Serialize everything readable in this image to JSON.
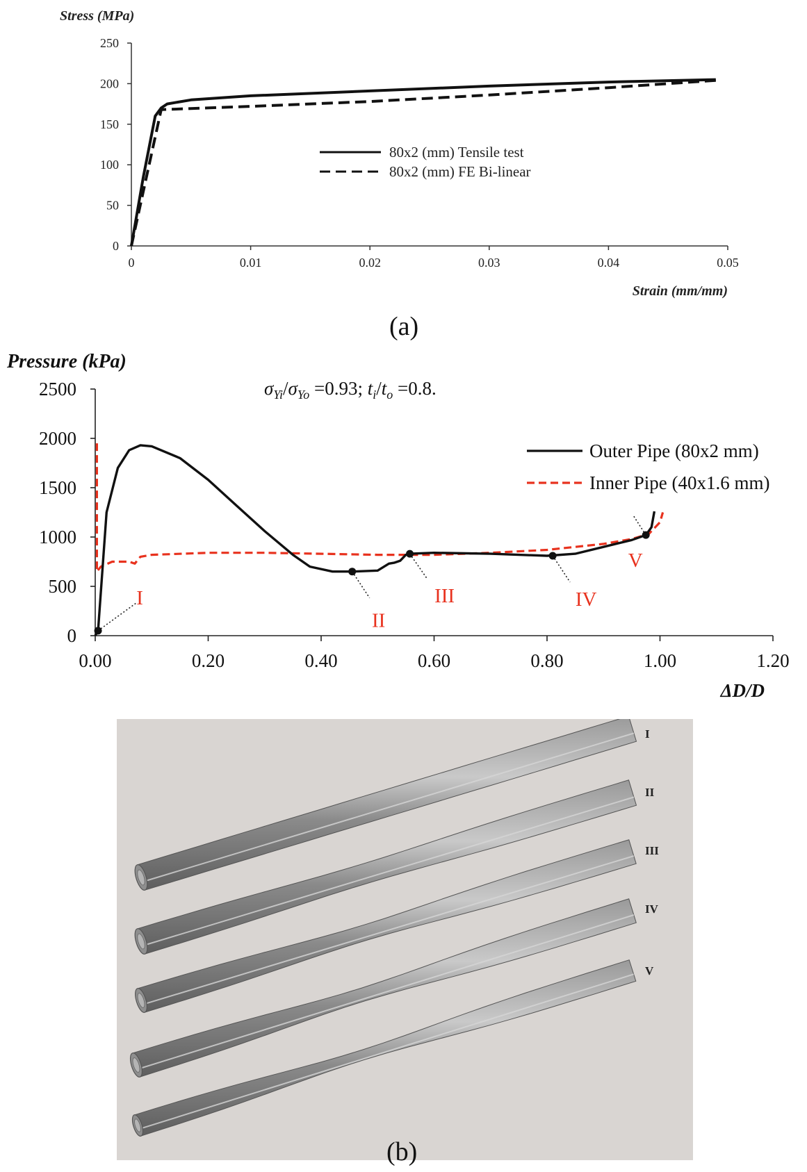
{
  "figure_labels": {
    "a": "(a)",
    "b": "(b)"
  },
  "chart_a": {
    "ylabel": "Stress (MPa)",
    "xlabel": "Strain (mm/mm)",
    "yticks": [
      "0",
      "50",
      "100",
      "150",
      "200",
      "250"
    ],
    "xticks": [
      "0",
      "0.01",
      "0.02",
      "0.03",
      "0.04",
      "0.05"
    ],
    "legend": [
      "80x2 (mm) Tensile test",
      "80x2 (mm) FE Bi-linear"
    ]
  },
  "chart_b": {
    "ylabel": "Pressure (kPa)",
    "xlabel": "ΔD/D",
    "annotation": "σYi/σYo =0.93; ti/to =0.8.",
    "yticks": [
      "0",
      "500",
      "1000",
      "1500",
      "2000",
      "2500"
    ],
    "xticks": [
      "0.00",
      "0.20",
      "0.40",
      "0.60",
      "0.80",
      "1.00",
      "1.20"
    ],
    "legend": [
      "Outer Pipe (80x2 mm)",
      "Inner Pipe (40x1.6 mm)"
    ],
    "points": [
      {
        "label": "I",
        "x": 0.005,
        "y": 50
      },
      {
        "label": "II",
        "x": 0.455,
        "y": 650
      },
      {
        "label": "III",
        "x": 0.557,
        "y": 830
      },
      {
        "label": "IV",
        "x": 0.81,
        "y": 810
      },
      {
        "label": "V",
        "x": 0.975,
        "y": 1020
      }
    ]
  },
  "model_stage_labels": [
    "I",
    "II",
    "III",
    "IV",
    "V"
  ],
  "chart_data": [
    {
      "type": "line",
      "xlabel": "Strain (mm/mm)",
      "ylabel": "Stress (MPa)",
      "xlim": [
        0,
        0.05
      ],
      "ylim": [
        0,
        250
      ],
      "grid": false,
      "legend_position": "center",
      "series": [
        {
          "name": "80x2 (mm) Tensile test",
          "style": "solid",
          "color": "#111111",
          "x": [
            0,
            0.001,
            0.002,
            0.0025,
            0.003,
            0.005,
            0.01,
            0.02,
            0.03,
            0.04,
            0.049
          ],
          "y": [
            0,
            85,
            160,
            170,
            175,
            180,
            185,
            191,
            197,
            202,
            205
          ]
        },
        {
          "name": "80x2 (mm) FE Bi-linear",
          "style": "dashed",
          "color": "#111111",
          "x": [
            0,
            0.0025,
            0.01,
            0.02,
            0.03,
            0.04,
            0.049
          ],
          "y": [
            0,
            168,
            172,
            178,
            186,
            195,
            204
          ]
        }
      ]
    },
    {
      "type": "line",
      "xlabel": "ΔD/D",
      "ylabel": "Pressure (kPa)",
      "xlim": [
        0,
        1.2
      ],
      "ylim": [
        0,
        2500
      ],
      "grid": false,
      "legend_position": "top-right",
      "series": [
        {
          "name": "Outer Pipe (80x2 mm)",
          "style": "solid",
          "color": "#111111",
          "x": [
            0,
            0.005,
            0.02,
            0.04,
            0.06,
            0.08,
            0.1,
            0.15,
            0.2,
            0.25,
            0.3,
            0.35,
            0.38,
            0.42,
            0.455,
            0.5,
            0.52,
            0.53,
            0.54,
            0.55,
            0.557,
            0.6,
            0.7,
            0.8,
            0.85,
            0.9,
            0.95,
            0.975,
            0.985,
            0.99
          ],
          "y": [
            0,
            50,
            1250,
            1700,
            1880,
            1930,
            1920,
            1800,
            1580,
            1320,
            1060,
            820,
            700,
            650,
            650,
            660,
            730,
            740,
            760,
            820,
            830,
            840,
            830,
            810,
            830,
            900,
            970,
            1020,
            1100,
            1260
          ]
        },
        {
          "name": "Inner Pipe (40x1.6 mm)",
          "style": "dashed",
          "color": "#e8321e",
          "x": [
            0.003,
            0.003,
            0.01,
            0.03,
            0.06,
            0.07,
            0.08,
            0.1,
            0.2,
            0.3,
            0.4,
            0.5,
            0.6,
            0.7,
            0.8,
            0.9,
            0.95,
            0.98,
            1.0,
            1.005
          ],
          "y": [
            1950,
            650,
            700,
            750,
            750,
            730,
            800,
            820,
            840,
            840,
            830,
            820,
            820,
            840,
            870,
            930,
            980,
            1030,
            1150,
            1250
          ]
        }
      ]
    }
  ]
}
